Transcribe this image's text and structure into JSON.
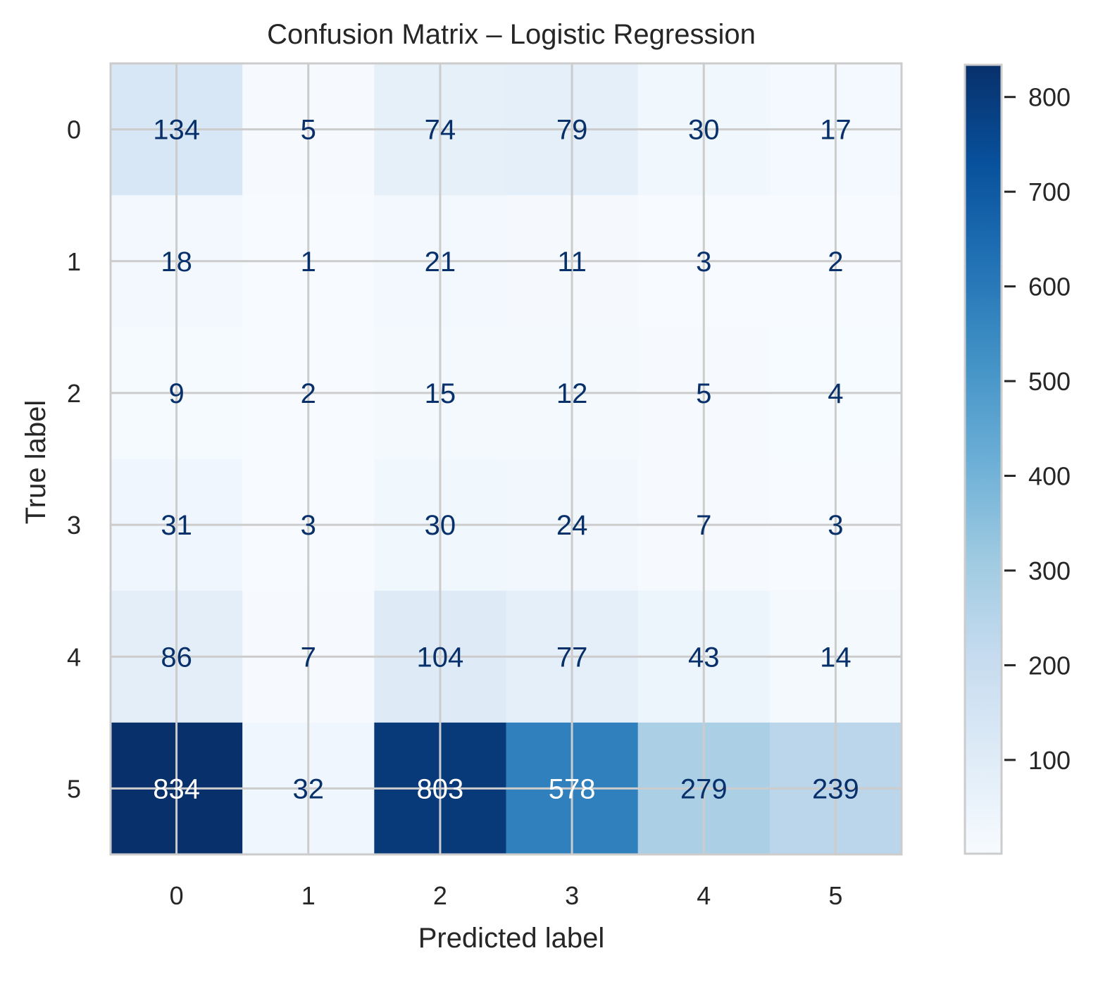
{
  "chart_data": {
    "type": "heatmap",
    "title": "Confusion Matrix – Logistic Regression",
    "xlabel": "Predicted label",
    "ylabel": "True label",
    "x_categories": [
      "0",
      "1",
      "2",
      "3",
      "4",
      "5"
    ],
    "y_categories": [
      "0",
      "1",
      "2",
      "3",
      "4",
      "5"
    ],
    "matrix": [
      [
        134,
        5,
        74,
        79,
        30,
        17
      ],
      [
        18,
        1,
        21,
        11,
        3,
        2
      ],
      [
        9,
        2,
        15,
        12,
        5,
        4
      ],
      [
        31,
        3,
        30,
        24,
        7,
        3
      ],
      [
        86,
        7,
        104,
        77,
        43,
        14
      ],
      [
        834,
        32,
        803,
        578,
        279,
        239
      ]
    ],
    "colormap": "Blues",
    "color_range": [
      1,
      834
    ],
    "colorbar_ticks": [
      100,
      200,
      300,
      400,
      500,
      600,
      700,
      800
    ],
    "grid": true,
    "colors": {
      "low": "#f7fbff",
      "high": "#08306b",
      "dark_text": "#08306b",
      "light_text": "#ffffff",
      "grid": "#cccccc",
      "axis_text": "#262626"
    }
  }
}
